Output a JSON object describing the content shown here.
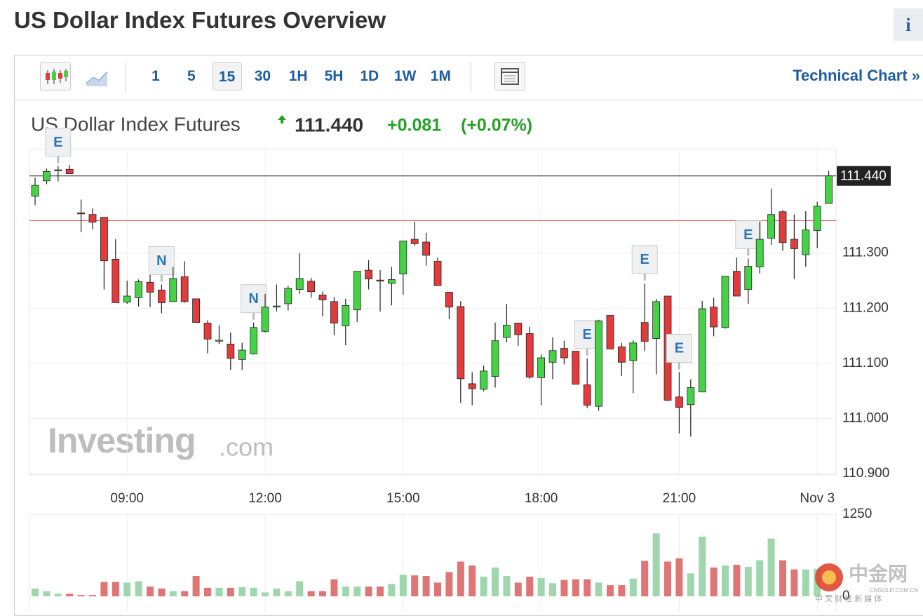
{
  "header": {
    "title": "US Dollar Index Futures Overview",
    "info": "i"
  },
  "toolbar": {
    "intervals": [
      "1",
      "5",
      "15",
      "30",
      "1H",
      "5H",
      "1D",
      "1W",
      "1M"
    ],
    "selected_interval": "15",
    "technical_link": "Technical Chart »"
  },
  "quote": {
    "name": "US Dollar Index Futures",
    "price": "111.440",
    "change": "+0.081",
    "change_pct": "(+0.07%)"
  },
  "watermark": {
    "brand": "Investing",
    "suffix": ".com"
  },
  "overlay_logo": {
    "name": "中金网",
    "tagline": "中 文 财 经 新 媒 体",
    "site": "CNGOLD.COM.CN"
  },
  "chart_data": {
    "type": "candlestick",
    "categories": [
      null,
      null,
      null,
      null,
      null,
      null,
      null,
      null,
      "09:00",
      null,
      null,
      null,
      null,
      null,
      null,
      null,
      null,
      null,
      null,
      null,
      "12:00",
      null,
      null,
      null,
      null,
      null,
      null,
      null,
      null,
      null,
      null,
      null,
      "15:00",
      null,
      null,
      null,
      null,
      null,
      null,
      null,
      null,
      null,
      null,
      null,
      "18:00",
      null,
      null,
      null,
      null,
      null,
      null,
      null,
      null,
      null,
      null,
      null,
      "21:00",
      null,
      null,
      null,
      null,
      null,
      null,
      null,
      null,
      null,
      null,
      null,
      "Nov 3",
      null
    ],
    "series": [
      {
        "open": [
          111.403,
          111.431,
          111.45,
          111.452,
          111.373,
          111.37,
          111.365,
          111.289,
          111.211,
          111.219,
          111.247,
          111.233,
          111.212,
          111.257,
          111.217,
          111.173,
          111.142,
          111.135,
          111.107,
          111.117,
          111.158,
          111.203,
          111.208,
          111.234,
          111.249,
          111.224,
          111.212,
          111.168,
          111.197,
          111.269,
          111.251,
          111.245,
          111.262,
          111.325,
          111.32,
          111.285,
          111.229,
          111.203,
          111.063,
          111.053,
          111.076,
          111.147,
          111.173,
          111.154,
          111.074,
          111.102,
          111.127,
          111.122,
          111.061,
          111.022,
          111.187,
          111.13,
          111.105,
          111.174,
          111.145,
          111.222,
          111.039,
          111.025,
          111.048,
          111.202,
          111.165,
          111.267,
          111.234,
          111.275,
          111.327,
          111.375,
          111.325,
          111.297,
          111.341,
          111.39
        ],
        "high": [
          111.437,
          111.453,
          111.458,
          111.46,
          111.397,
          111.381,
          111.365,
          111.325,
          111.25,
          111.252,
          111.275,
          111.243,
          111.275,
          111.285,
          111.217,
          111.178,
          111.169,
          111.156,
          111.137,
          111.174,
          111.226,
          111.243,
          111.24,
          111.3,
          111.255,
          111.23,
          111.22,
          111.217,
          111.267,
          111.287,
          111.269,
          111.275,
          111.322,
          111.357,
          111.337,
          111.292,
          111.229,
          111.213,
          111.084,
          111.096,
          111.174,
          111.208,
          111.174,
          111.166,
          111.116,
          111.147,
          111.141,
          111.122,
          111.109,
          111.179,
          111.187,
          111.137,
          111.142,
          111.245,
          111.217,
          111.222,
          111.084,
          111.071,
          111.213,
          111.219,
          111.258,
          111.292,
          111.29,
          111.357,
          111.417,
          111.378,
          111.37,
          111.376,
          111.393,
          111.449
        ],
        "low": [
          111.387,
          111.425,
          111.43,
          111.444,
          111.338,
          111.343,
          111.234,
          111.21,
          111.208,
          111.203,
          111.202,
          111.191,
          111.211,
          111.21,
          111.174,
          111.118,
          111.135,
          111.088,
          111.088,
          111.116,
          111.156,
          111.194,
          111.196,
          111.226,
          111.219,
          111.185,
          111.151,
          111.133,
          111.175,
          111.234,
          111.194,
          111.205,
          111.224,
          111.313,
          111.277,
          111.241,
          111.18,
          111.028,
          111.024,
          111.049,
          111.056,
          111.138,
          111.132,
          111.072,
          111.024,
          111.071,
          111.098,
          111.062,
          111.019,
          111.014,
          111.126,
          111.077,
          111.046,
          111.122,
          111.08,
          111.032,
          110.973,
          110.967,
          111.048,
          111.149,
          111.163,
          111.222,
          111.208,
          111.263,
          111.315,
          111.304,
          111.253,
          111.275,
          111.309,
          111.39
        ],
        "close": [
          111.423,
          111.448,
          111.451,
          111.444,
          111.372,
          111.356,
          111.286,
          111.21,
          111.222,
          111.248,
          111.229,
          111.21,
          111.254,
          111.212,
          111.174,
          111.144,
          111.142,
          111.109,
          111.124,
          111.165,
          111.202,
          111.204,
          111.236,
          111.254,
          111.23,
          111.215,
          111.173,
          111.205,
          111.267,
          111.253,
          111.25,
          111.252,
          111.322,
          111.317,
          111.296,
          111.241,
          111.202,
          111.072,
          111.054,
          111.086,
          111.141,
          111.169,
          111.152,
          111.075,
          111.11,
          111.123,
          111.11,
          111.062,
          111.024,
          111.177,
          111.126,
          111.102,
          111.137,
          111.14,
          111.212,
          111.033,
          111.02,
          111.056,
          111.199,
          111.166,
          111.258,
          111.222,
          111.276,
          111.325,
          111.37,
          111.319,
          111.308,
          111.342,
          111.385,
          111.44
        ],
        "volume": [
          120,
          80,
          40,
          40,
          20,
          20,
          220,
          220,
          210,
          230,
          150,
          120,
          80,
          80,
          310,
          130,
          130,
          130,
          140,
          130,
          60,
          120,
          80,
          230,
          80,
          80,
          260,
          150,
          150,
          150,
          150,
          190,
          330,
          320,
          310,
          210,
          370,
          530,
          470,
          300,
          440,
          310,
          210,
          300,
          280,
          200,
          250,
          260,
          260,
          210,
          170,
          170,
          270,
          540,
          960,
          530,
          580,
          350,
          910,
          440,
          470,
          480,
          450,
          550,
          880,
          550,
          410,
          410,
          420,
          20
        ],
        "event_labels": [
          null,
          null,
          "E",
          null,
          null,
          null,
          null,
          null,
          null,
          null,
          null,
          "N",
          null,
          null,
          null,
          null,
          null,
          null,
          null,
          "N",
          null,
          null,
          null,
          null,
          null,
          null,
          null,
          null,
          null,
          null,
          null,
          null,
          null,
          null,
          null,
          null,
          null,
          null,
          null,
          null,
          null,
          null,
          null,
          null,
          null,
          null,
          null,
          null,
          "E",
          null,
          null,
          null,
          null,
          "E",
          null,
          null,
          "E",
          null,
          null,
          null,
          null,
          null,
          "E",
          null,
          null,
          null,
          null,
          null,
          null,
          null
        ]
      }
    ],
    "up_color": "#46d246",
    "down_color": "#e23b3b",
    "up_volume_color": "#9fd6ae",
    "down_volume_color": "#e07575",
    "ylim": [
      110.9,
      111.488
    ],
    "yticks": [
      {
        "value": 110.9,
        "label": "110.900"
      },
      {
        "value": 111,
        "label": "111.000"
      },
      {
        "value": 111.1,
        "label": "111.100"
      },
      {
        "value": 111.2,
        "label": "111.200"
      },
      {
        "value": 111.3,
        "label": "111.300"
      }
    ],
    "last_price": {
      "value": 111.44,
      "label": "111.440"
    },
    "prev_close_line": 111.359,
    "volume_ylim": [
      0,
      1250
    ],
    "volume_yticks": [
      0,
      1250
    ],
    "grid": true
  }
}
